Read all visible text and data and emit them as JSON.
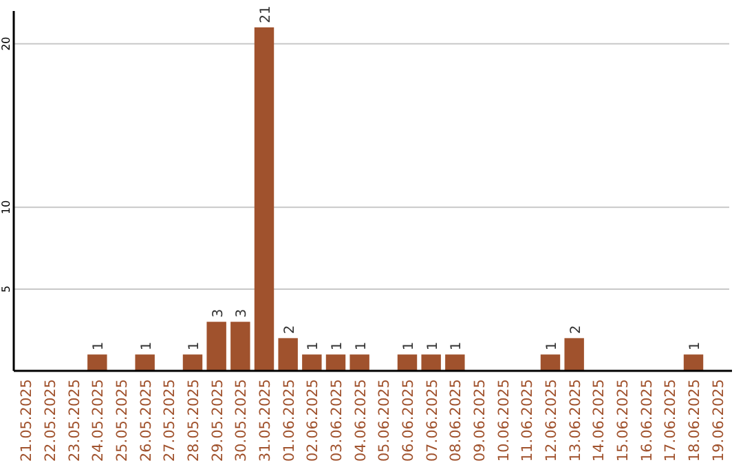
{
  "chart_data": {
    "type": "bar",
    "categories": [
      "21.05.2025",
      "22.05.2025",
      "23.05.2025",
      "24.05.2025",
      "25.05.2025",
      "26.05.2025",
      "27.05.2025",
      "28.05.2025",
      "29.05.2025",
      "30.05.2025",
      "31.05.2025",
      "01.06.2025",
      "02.06.2025",
      "03.06.2025",
      "04.06.2025",
      "05.06.2025",
      "06.06.2025",
      "07.06.2025",
      "08.06.2025",
      "09.06.2025",
      "10.06.2025",
      "11.06.2025",
      "12.06.2025",
      "13.06.2025",
      "14.06.2025",
      "15.06.2025",
      "16.06.2025",
      "17.06.2025",
      "18.06.2025",
      "19.06.2025"
    ],
    "values": [
      0,
      0,
      0,
      1,
      0,
      1,
      0,
      1,
      3,
      3,
      21,
      2,
      1,
      1,
      1,
      0,
      1,
      1,
      1,
      0,
      0,
      0,
      1,
      2,
      0,
      0,
      0,
      0,
      1,
      0
    ],
    "value_labels": [
      null,
      null,
      null,
      "1",
      null,
      "1",
      null,
      "1",
      "3",
      "3",
      "21",
      "2",
      "1",
      "1",
      "1",
      null,
      "1",
      "1",
      "1",
      null,
      null,
      null,
      "1",
      "2",
      null,
      null,
      null,
      null,
      "1",
      null
    ],
    "color": "#a0522d",
    "ylim": [
      0,
      22
    ],
    "yticks": [
      5,
      10,
      20
    ],
    "grid": "y"
  }
}
